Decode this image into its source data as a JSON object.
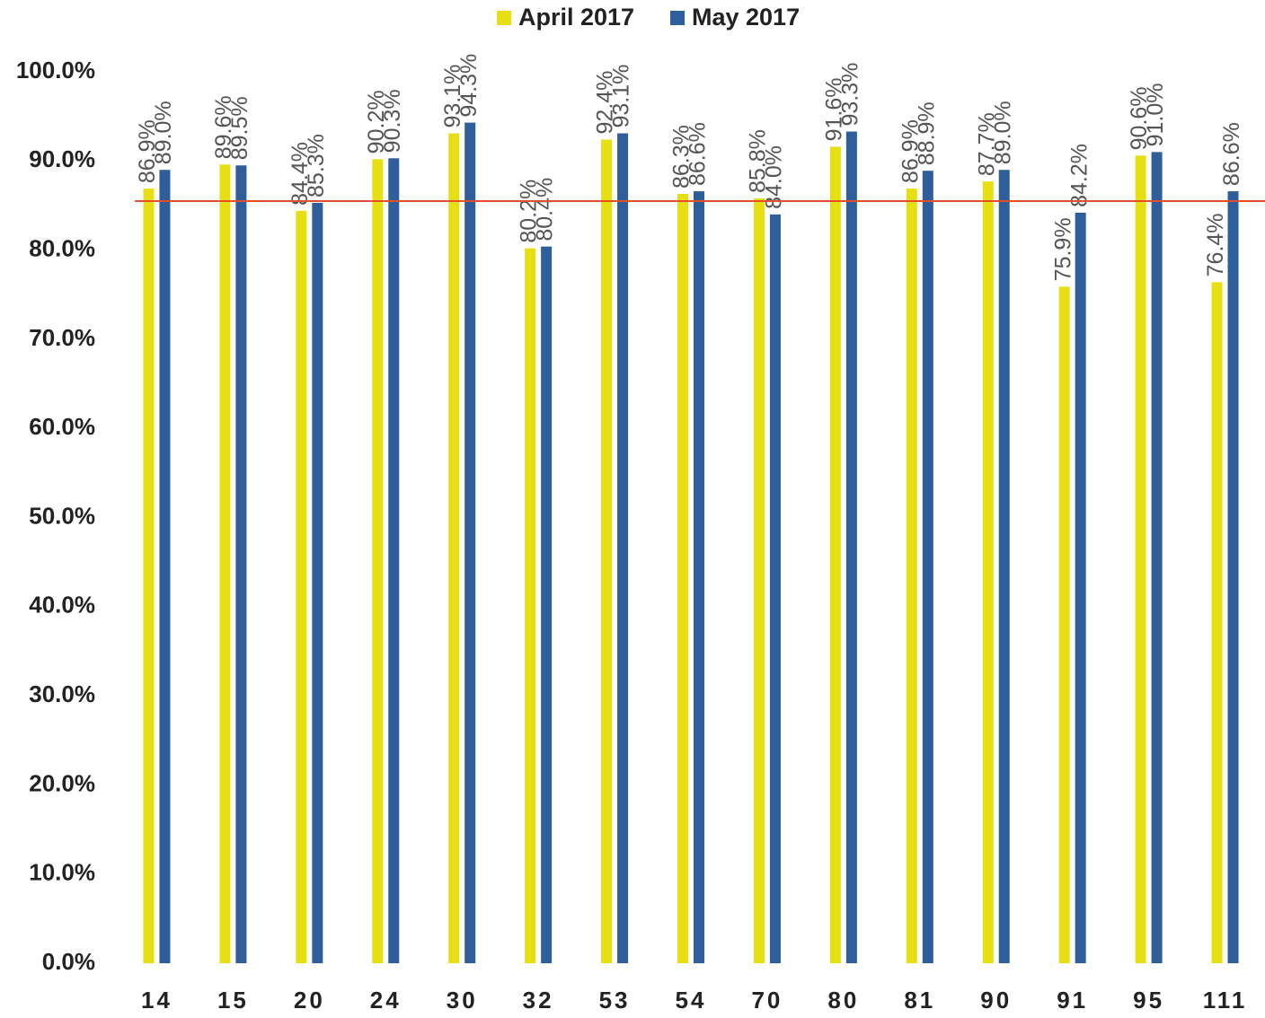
{
  "chart_data": {
    "type": "bar",
    "categories": [
      "14",
      "15",
      "20",
      "24",
      "30",
      "32",
      "53",
      "54",
      "70",
      "80",
      "81",
      "90",
      "91",
      "95",
      "111"
    ],
    "series": [
      {
        "name": "April 2017",
        "color": "#e8df12",
        "values": [
          86.9,
          89.6,
          84.4,
          90.2,
          93.1,
          80.2,
          92.4,
          86.3,
          85.8,
          91.6,
          86.9,
          87.7,
          75.9,
          90.6,
          76.4
        ],
        "value_labels": [
          "86.9%",
          "89.6%",
          "84.4%",
          "90.2%",
          "93.1%",
          "80.2%",
          "92.4%",
          "86.3%",
          "85.8%",
          "91.6%",
          "86.9%",
          "87.7%",
          "75.9%",
          "90.6%",
          "76.4%"
        ]
      },
      {
        "name": "May 2017",
        "color": "#2e5f9a",
        "values": [
          89.0,
          89.5,
          85.3,
          90.3,
          94.3,
          80.4,
          93.1,
          86.6,
          84.0,
          93.3,
          88.9,
          89.0,
          84.2,
          91.0,
          86.6
        ],
        "value_labels": [
          "89.0%",
          "89.5%",
          "85.3%",
          "90.3%",
          "94.3%",
          "80.4%",
          "93.1%",
          "86.6%",
          "84.0%",
          "93.3%",
          "88.9%",
          "89.0%",
          "84.2%",
          "91.0%",
          "86.6%"
        ]
      }
    ],
    "ylim": [
      0,
      100
    ],
    "yticks": [
      {
        "value": 0,
        "label": "0.0%"
      },
      {
        "value": 10,
        "label": "10.0%"
      },
      {
        "value": 20,
        "label": "20.0%"
      },
      {
        "value": 30,
        "label": "30.0%"
      },
      {
        "value": 40,
        "label": "40.0%"
      },
      {
        "value": 50,
        "label": "50.0%"
      },
      {
        "value": 60,
        "label": "60.0%"
      },
      {
        "value": 70,
        "label": "70.0%"
      },
      {
        "value": 80,
        "label": "80.0%"
      },
      {
        "value": 90,
        "label": "90.0%"
      },
      {
        "value": 100,
        "label": "100.0%"
      }
    ],
    "reference_line": {
      "value": 85.5,
      "color": "#e0502c"
    },
    "legend": "top"
  }
}
